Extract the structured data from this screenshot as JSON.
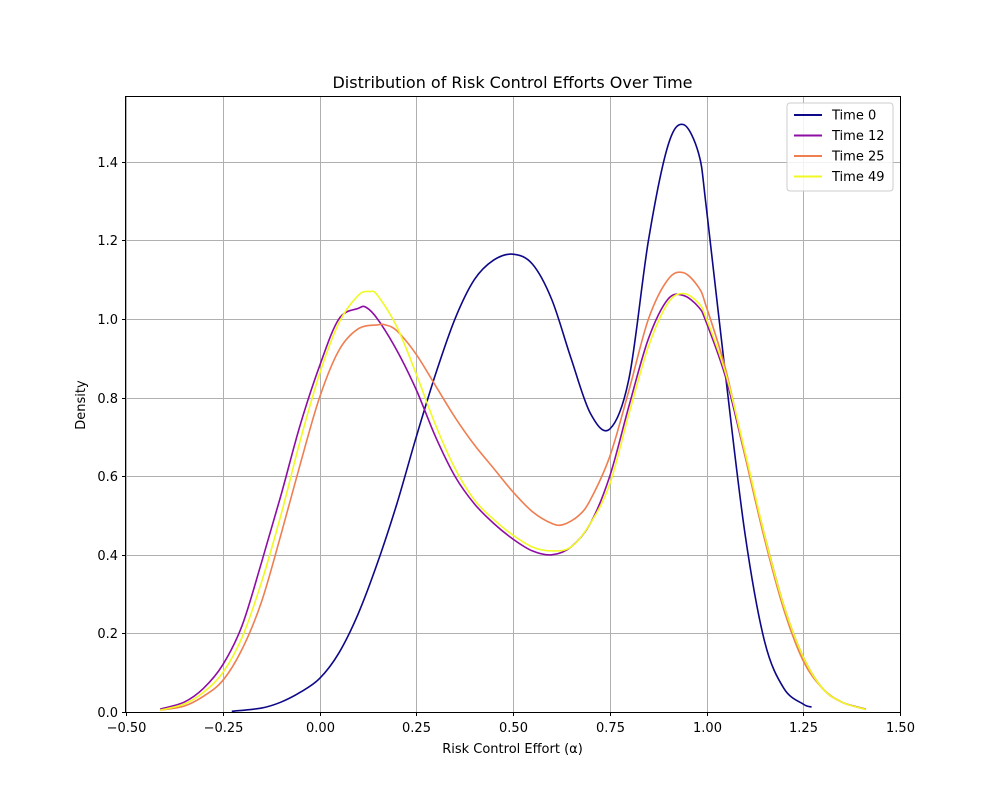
{
  "chart_data": {
    "type": "line",
    "title": "Distribution of Risk Control Efforts Over Time",
    "xlabel": "Risk Control Effort (α)",
    "ylabel": "Density",
    "xlim": [
      -0.5,
      1.5
    ],
    "ylim": [
      0,
      1.565
    ],
    "xticks": [
      -0.5,
      -0.25,
      0.0,
      0.25,
      0.5,
      0.75,
      1.0,
      1.25,
      1.5
    ],
    "xtick_labels": [
      "−0.50",
      "−0.25",
      "0.00",
      "0.25",
      "0.50",
      "0.75",
      "1.00",
      "1.25",
      "1.50"
    ],
    "yticks": [
      0.0,
      0.2,
      0.4,
      0.6,
      0.8,
      1.0,
      1.2,
      1.4
    ],
    "ytick_labels": [
      "0.0",
      "0.2",
      "0.4",
      "0.6",
      "0.8",
      "1.0",
      "1.2",
      "1.4"
    ],
    "grid": true,
    "legend_position": "top-right",
    "series": [
      {
        "name": "Time 0",
        "color": "#0d0887",
        "x": [
          -0.225,
          -0.15,
          -0.1,
          -0.05,
          0.0,
          0.05,
          0.1,
          0.15,
          0.2,
          0.25,
          0.3,
          0.35,
          0.4,
          0.45,
          0.5,
          0.55,
          0.6,
          0.65,
          0.7,
          0.75,
          0.8,
          0.85,
          0.9,
          0.94,
          0.98,
          1.0,
          1.05,
          1.1,
          1.15,
          1.2,
          1.25,
          1.27
        ],
        "y": [
          0.002,
          0.01,
          0.025,
          0.05,
          0.085,
          0.15,
          0.25,
          0.38,
          0.53,
          0.7,
          0.86,
          1.0,
          1.1,
          1.15,
          1.165,
          1.14,
          1.05,
          0.9,
          0.76,
          0.72,
          0.85,
          1.2,
          1.44,
          1.495,
          1.42,
          1.28,
          0.85,
          0.45,
          0.18,
          0.06,
          0.02,
          0.013
        ]
      },
      {
        "name": "Time 12",
        "color": "#8f0da4",
        "x": [
          -0.41,
          -0.35,
          -0.3,
          -0.25,
          -0.2,
          -0.15,
          -0.1,
          -0.05,
          0.0,
          0.05,
          0.1,
          0.12,
          0.15,
          0.2,
          0.25,
          0.3,
          0.35,
          0.4,
          0.45,
          0.5,
          0.55,
          0.6,
          0.65,
          0.7,
          0.75,
          0.8,
          0.85,
          0.9,
          0.94,
          0.98,
          1.0,
          1.05,
          1.1,
          1.15,
          1.2,
          1.25,
          1.3,
          1.35,
          1.41
        ],
        "y": [
          0.008,
          0.025,
          0.06,
          0.12,
          0.22,
          0.38,
          0.55,
          0.73,
          0.88,
          1.0,
          1.027,
          1.03,
          1.0,
          0.92,
          0.82,
          0.7,
          0.6,
          0.53,
          0.48,
          0.44,
          0.41,
          0.4,
          0.42,
          0.48,
          0.6,
          0.78,
          0.95,
          1.05,
          1.06,
          1.03,
          0.99,
          0.85,
          0.65,
          0.45,
          0.27,
          0.14,
          0.06,
          0.025,
          0.008
        ]
      },
      {
        "name": "Time 25",
        "color": "#ef7e50",
        "x": [
          -0.41,
          -0.35,
          -0.3,
          -0.25,
          -0.2,
          -0.15,
          -0.1,
          -0.05,
          0.0,
          0.05,
          0.1,
          0.15,
          0.17,
          0.2,
          0.25,
          0.3,
          0.35,
          0.4,
          0.45,
          0.5,
          0.55,
          0.6,
          0.63,
          0.67,
          0.7,
          0.75,
          0.8,
          0.85,
          0.9,
          0.94,
          0.98,
          1.0,
          1.05,
          1.1,
          1.15,
          1.2,
          1.25,
          1.3,
          1.35,
          1.41
        ],
        "y": [
          0.005,
          0.015,
          0.04,
          0.08,
          0.16,
          0.28,
          0.45,
          0.63,
          0.8,
          0.92,
          0.975,
          0.985,
          0.985,
          0.97,
          0.91,
          0.83,
          0.75,
          0.68,
          0.62,
          0.56,
          0.51,
          0.48,
          0.477,
          0.5,
          0.54,
          0.65,
          0.82,
          1.0,
          1.1,
          1.118,
          1.08,
          1.03,
          0.87,
          0.65,
          0.44,
          0.26,
          0.13,
          0.06,
          0.025,
          0.007
        ]
      },
      {
        "name": "Time 49",
        "color": "#f0f921",
        "x": [
          -0.41,
          -0.35,
          -0.3,
          -0.25,
          -0.2,
          -0.15,
          -0.1,
          -0.05,
          0.0,
          0.05,
          0.1,
          0.13,
          0.15,
          0.2,
          0.25,
          0.3,
          0.35,
          0.4,
          0.45,
          0.5,
          0.55,
          0.6,
          0.65,
          0.7,
          0.75,
          0.8,
          0.85,
          0.9,
          0.94,
          0.98,
          1.0,
          1.05,
          1.1,
          1.15,
          1.2,
          1.25,
          1.3,
          1.35,
          1.41
        ],
        "y": [
          0.005,
          0.02,
          0.05,
          0.1,
          0.19,
          0.33,
          0.5,
          0.69,
          0.86,
          0.99,
          1.06,
          1.07,
          1.06,
          0.98,
          0.86,
          0.73,
          0.62,
          0.54,
          0.49,
          0.45,
          0.42,
          0.41,
          0.42,
          0.48,
          0.58,
          0.76,
          0.93,
          1.04,
          1.065,
          1.04,
          1.0,
          0.86,
          0.66,
          0.45,
          0.27,
          0.14,
          0.06,
          0.025,
          0.007
        ]
      }
    ]
  }
}
